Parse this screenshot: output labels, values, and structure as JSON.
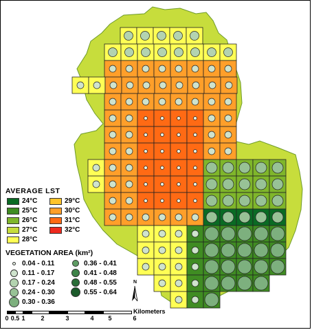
{
  "legend": {
    "lst_title": "AVERAGE LST",
    "lst_items": [
      {
        "label": "24°C",
        "color": "#0a6b24"
      },
      {
        "label": "29°C",
        "color": "#ffc42a"
      },
      {
        "label": "25°C",
        "color": "#3f8c22"
      },
      {
        "label": "30°C",
        "color": "#ff9f2a"
      },
      {
        "label": "26°C",
        "color": "#7fb62b"
      },
      {
        "label": "31°C",
        "color": "#ff6a14"
      },
      {
        "label": "27°C",
        "color": "#c7dd3c"
      },
      {
        "label": "32°C",
        "color": "#ee2a1e"
      },
      {
        "label": "28°C",
        "color": "#ffff55"
      }
    ],
    "veg_title": "VEGETATION AREA (km²)",
    "veg_items": [
      {
        "label": "0.04 - 0.11",
        "color": "#e6f1e4"
      },
      {
        "label": "0.36 - 0.41",
        "color": "#5e9c64"
      },
      {
        "label": "0.11 - 0.17",
        "color": "#cfe3cd"
      },
      {
        "label": "0.41 - 0.48",
        "color": "#3e8349"
      },
      {
        "label": "0.17 - 0.24",
        "color": "#b3d3b0"
      },
      {
        "label": "0.48 - 0.55",
        "color": "#2a6d38"
      },
      {
        "label": "0.24 - 0.30",
        "color": "#98c296"
      },
      {
        "label": "0.55 - 0.64",
        "color": "#1b5a2a"
      },
      {
        "label": "0.30 - 0.36",
        "color": "#7db07e"
      }
    ]
  },
  "north_arrow": {
    "label": "N"
  },
  "scale": {
    "ticks": [
      "0",
      "0.5",
      "1",
      "2",
      "3",
      "4",
      "5",
      "6"
    ],
    "unit": "Kilometers"
  }
}
